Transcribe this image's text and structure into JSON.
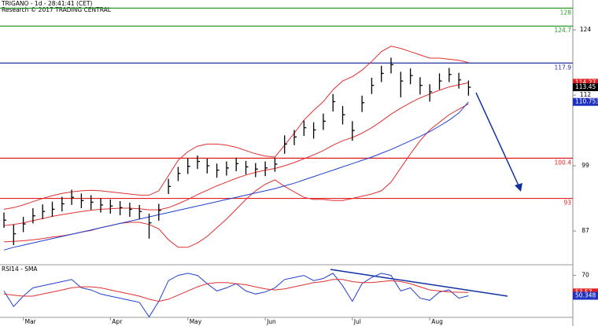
{
  "chart_data": {
    "type": "ohlc",
    "title": "TRIGANO - 1d - 28:41:41 (CET)",
    "subtitle": "Research © 2017 TRADING CENTRAL",
    "categories": [
      null,
      null,
      "Mar",
      null,
      null,
      null,
      null,
      null,
      null,
      null,
      null,
      "Apr",
      null,
      null,
      null,
      null,
      null,
      null,
      null,
      "May",
      null,
      null,
      null,
      null,
      null,
      null,
      null,
      "Jun",
      null,
      null,
      null,
      null,
      null,
      null,
      null,
      null,
      "Jul",
      null,
      null,
      null,
      null,
      null,
      null,
      null,
      "Aug",
      null,
      null,
      null,
      null
    ],
    "high": [
      90.4,
      88.2,
      89.6,
      91.2,
      91.9,
      92.4,
      93.3,
      94.6,
      93.9,
      93.6,
      93.0,
      92.8,
      92.5,
      92.2,
      91.8,
      90.2,
      92.0,
      96.6,
      98.8,
      100.4,
      100.9,
      100.3,
      99.4,
      99.8,
      100.5,
      99.9,
      99.5,
      99.8,
      100.5,
      104.6,
      105.6,
      107.3,
      107.0,
      108.6,
      112.2,
      110.0,
      107.2,
      111.9,
      115.2,
      117.4,
      118.9,
      116.3,
      116.9,
      115.3,
      114.0,
      116.0,
      117.0,
      116.1,
      114.7
    ],
    "low": [
      87.6,
      84.4,
      86.8,
      88.4,
      89.2,
      89.6,
      90.6,
      91.8,
      91.2,
      90.9,
      90.4,
      90.2,
      89.9,
      89.6,
      89.2,
      85.6,
      88.9,
      93.8,
      96.2,
      97.5,
      98.4,
      97.6,
      96.8,
      97.2,
      98.0,
      97.4,
      96.9,
      97.1,
      97.9,
      101.2,
      102.8,
      104.5,
      104.0,
      105.6,
      109.0,
      106.6,
      103.6,
      108.9,
      112.2,
      114.4,
      116.0,
      111.6,
      114.0,
      112.1,
      110.8,
      113.0,
      114.4,
      113.2,
      111.9
    ],
    "close": [
      89.0,
      86.5,
      88.3,
      89.8,
      90.6,
      91.0,
      92.0,
      93.2,
      92.6,
      92.3,
      91.8,
      91.6,
      91.3,
      91.0,
      90.6,
      88.5,
      90.8,
      95.2,
      97.6,
      98.9,
      99.8,
      99.0,
      98.2,
      98.6,
      99.4,
      98.8,
      98.4,
      98.6,
      99.3,
      103.0,
      104.3,
      106.0,
      105.6,
      107.2,
      110.8,
      108.4,
      105.5,
      110.6,
      113.8,
      116.0,
      117.6,
      114.6,
      115.6,
      113.8,
      112.6,
      114.6,
      115.8,
      114.8,
      113.45
    ],
    "color": "#000000",
    "overlays": [
      {
        "color": "#e03030",
        "values": [
          91.0,
          91.3,
          91.8,
          92.4,
          93.0,
          93.5,
          93.9,
          94.2,
          94.4,
          94.5,
          94.4,
          94.2,
          94.0,
          93.8,
          93.6,
          93.6,
          94.4,
          97.2,
          100.0,
          101.6,
          102.6,
          103.0,
          103.0,
          102.8,
          102.4,
          101.8,
          101.2,
          100.8,
          100.6,
          102.8,
          105.0,
          107.4,
          109.2,
          110.8,
          113.0,
          114.6,
          115.4,
          116.6,
          118.2,
          120.0,
          121.0,
          120.6,
          120.0,
          119.4,
          118.8,
          118.8,
          118.6,
          118.4,
          118.0
        ]
      },
      {
        "color": "#e03030",
        "values": [
          88.0,
          88.2,
          88.5,
          88.9,
          89.3,
          89.7,
          90.0,
          90.3,
          90.6,
          90.8,
          91.0,
          91.1,
          91.2,
          91.2,
          91.1,
          90.9,
          90.9,
          91.3,
          92.0,
          92.8,
          93.7,
          94.5,
          95.3,
          96.0,
          96.7,
          97.3,
          97.8,
          98.2,
          98.5,
          99.0,
          99.6,
          100.3,
          101.0,
          101.8,
          102.8,
          103.6,
          104.2,
          105.0,
          106.0,
          107.2,
          108.5,
          109.6,
          110.6,
          111.5,
          112.2,
          112.9,
          113.5,
          113.9,
          114.27
        ]
      },
      {
        "color": "#e03030",
        "values": [
          85.0,
          85.1,
          85.2,
          85.4,
          85.6,
          85.9,
          86.1,
          86.4,
          86.8,
          87.1,
          87.6,
          88.0,
          88.4,
          88.6,
          88.6,
          88.2,
          87.4,
          85.4,
          84.0,
          84.0,
          84.8,
          86.0,
          87.6,
          89.2,
          91.0,
          92.8,
          94.4,
          95.6,
          96.4,
          95.2,
          94.2,
          93.2,
          92.8,
          92.8,
          92.6,
          92.6,
          93.0,
          93.4,
          93.8,
          94.4,
          96.0,
          98.6,
          101.2,
          103.6,
          105.6,
          107.0,
          108.4,
          109.4,
          110.4
        ]
      },
      {
        "color": "#2040d0",
        "values": [
          83.5,
          84.0,
          84.4,
          84.8,
          85.2,
          85.6,
          86.0,
          86.4,
          86.8,
          87.2,
          87.6,
          88.0,
          88.4,
          88.8,
          89.2,
          89.6,
          90.0,
          90.4,
          90.8,
          91.2,
          91.6,
          92.0,
          92.4,
          92.8,
          93.2,
          93.6,
          94.0,
          94.4,
          94.8,
          95.3,
          95.8,
          96.4,
          97.0,
          97.6,
          98.2,
          98.8,
          99.4,
          100.0,
          100.6,
          101.3,
          102.0,
          102.8,
          103.6,
          104.4,
          105.3,
          106.3,
          107.4,
          108.7,
          110.753
        ]
      }
    ],
    "levels": [
      {
        "value": 128,
        "label": "128",
        "color": "#2a9a2a"
      },
      {
        "value": 124.7,
        "label": "124.7",
        "color": "#2a9a2a"
      },
      {
        "value": 117.9,
        "label": "117.9",
        "color": "#2030a0"
      },
      {
        "value": 100.4,
        "label": "100.4",
        "color": "#e02020"
      },
      {
        "value": 93,
        "label": "93",
        "color": "#e02020"
      }
    ],
    "markers": [
      {
        "value": 114.27,
        "label": "114.27",
        "color": "#e02020"
      },
      {
        "value": 113.45,
        "label": "113.45",
        "color": "#000000"
      },
      {
        "value": 110.753,
        "label": "110.753",
        "color": "#2030c0"
      }
    ],
    "ylim": [
      81,
      129.5
    ],
    "yticks": [
      87,
      99,
      112,
      124
    ],
    "rsi": {
      "title": "RSI14 - SMA",
      "ylim": [
        25,
        78
      ],
      "yticks": [
        70
      ],
      "series": [
        {
          "color": "#2040d0",
          "values": [
            55,
            40,
            50,
            58,
            60,
            62,
            64,
            66,
            58,
            56,
            52,
            50,
            48,
            46,
            44,
            30,
            45,
            65,
            70,
            72,
            70,
            62,
            55,
            58,
            62,
            55,
            52,
            54,
            58,
            66,
            68,
            70,
            65,
            67,
            72,
            60,
            45,
            62,
            68,
            72,
            70,
            55,
            58,
            48,
            46,
            54,
            56,
            48,
            50.348
          ]
        },
        {
          "color": "#e03030",
          "values": [
            52,
            51,
            50,
            50,
            52,
            54,
            56,
            58,
            59,
            59,
            58,
            56,
            54,
            52,
            50,
            47,
            45,
            47,
            51,
            55,
            59,
            62,
            63,
            63,
            62,
            61,
            59,
            57,
            56,
            57,
            59,
            61,
            63,
            64,
            66,
            66,
            64,
            63,
            63,
            64,
            65,
            64,
            62,
            59,
            56,
            55,
            54,
            53.8,
            53.57
          ]
        }
      ],
      "markers": [
        {
          "value": 53.57,
          "label": "53.57",
          "color": "#e02020"
        },
        {
          "value": 50.348,
          "label": "50.348",
          "color": "#2030c0"
        }
      ]
    }
  }
}
